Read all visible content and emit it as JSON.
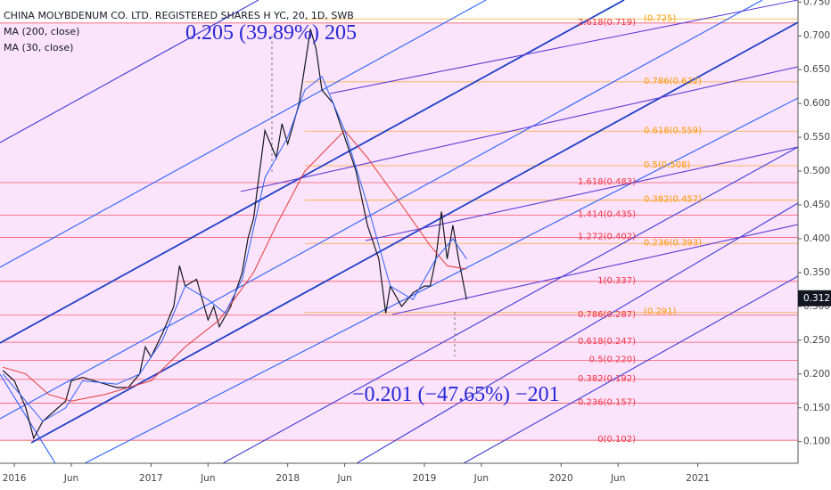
{
  "chart_data": {
    "type": "line",
    "annotations": [
      "0.205 (39.89%) 205",
      "−0.201 (−47.65%) −201"
    ],
    "last_price": 0.312,
    "xlim": [
      -1.26,
      68.8
    ],
    "ylim": [
      0.068,
      0.753
    ],
    "xticks": [
      {
        "value": 0,
        "label": "2016"
      },
      {
        "value": 5,
        "label": "Jun"
      },
      {
        "value": 12,
        "label": "2017"
      },
      {
        "value": 17,
        "label": "Jun"
      },
      {
        "value": 24,
        "label": "2018"
      },
      {
        "value": 29,
        "label": "Jun"
      },
      {
        "value": 36,
        "label": "2019"
      },
      {
        "value": 41,
        "label": "Jun"
      },
      {
        "value": 48,
        "label": "2020"
      },
      {
        "value": 53,
        "label": "Jun"
      },
      {
        "value": 60,
        "label": "2021"
      }
    ],
    "yticks": [
      {
        "value": 0.1,
        "label": "0.100"
      },
      {
        "value": 0.15,
        "label": "0.150"
      },
      {
        "value": 0.2,
        "label": "0.200"
      },
      {
        "value": 0.25,
        "label": "0.250"
      },
      {
        "value": 0.3,
        "label": "0.300"
      },
      {
        "value": 0.35,
        "label": "0.350"
      },
      {
        "value": 0.4,
        "label": "0.400"
      },
      {
        "value": 0.45,
        "label": "0.450"
      },
      {
        "value": 0.5,
        "label": "0.500"
      },
      {
        "value": 0.55,
        "label": "0.550"
      },
      {
        "value": 0.6,
        "label": "0.600"
      },
      {
        "value": 0.65,
        "label": "0.650"
      },
      {
        "value": 0.7,
        "label": "0.700"
      },
      {
        "value": 0.75,
        "label": "0.750"
      }
    ],
    "series": [
      {
        "name": "CHINA MOLYBDENUM CO. LTD. REGISTERED SHARES H YC, 20, 1D, SWB",
        "color": "#131722",
        "x": [
          -1,
          0,
          1,
          1.7,
          2.5,
          3.5,
          4.5,
          5,
          6,
          7,
          8,
          9,
          10,
          11,
          11.5,
          12,
          13,
          14,
          14.5,
          15,
          16,
          17,
          17.5,
          18,
          19,
          20,
          20.5,
          21,
          22,
          23,
          23.5,
          24,
          25,
          26,
          26.5,
          27,
          28,
          29,
          30,
          31,
          32,
          32.6,
          33,
          34,
          35,
          36,
          36.5,
          37,
          37.5,
          38,
          38.5,
          39,
          39.7
        ],
        "values": [
          0.205,
          0.19,
          0.15,
          0.105,
          0.13,
          0.145,
          0.16,
          0.19,
          0.195,
          0.19,
          0.185,
          0.18,
          0.18,
          0.2,
          0.24,
          0.225,
          0.26,
          0.3,
          0.36,
          0.33,
          0.34,
          0.28,
          0.3,
          0.27,
          0.3,
          0.35,
          0.4,
          0.43,
          0.56,
          0.52,
          0.57,
          0.54,
          0.6,
          0.71,
          0.68,
          0.62,
          0.6,
          0.55,
          0.5,
          0.42,
          0.37,
          0.29,
          0.33,
          0.3,
          0.32,
          0.33,
          0.33,
          0.37,
          0.44,
          0.37,
          0.42,
          0.37,
          0.31
        ]
      },
      {
        "name": "MA (200, close)",
        "color": "#e53935",
        "x": [
          -1,
          1,
          3,
          5,
          8,
          12,
          15,
          18,
          21,
          23,
          25.5,
          29,
          31,
          34,
          36.5,
          38,
          39.7
        ],
        "values": [
          0.21,
          0.2,
          0.17,
          0.16,
          0.17,
          0.19,
          0.24,
          0.28,
          0.35,
          0.42,
          0.5,
          0.56,
          0.52,
          0.45,
          0.39,
          0.36,
          0.355
        ]
      },
      {
        "name": "MA (30, close)",
        "color": "#2962ff",
        "x": [
          -1,
          1,
          2.5,
          4.5,
          6,
          9,
          11,
          13,
          15,
          17,
          18.5,
          20,
          22,
          24,
          25.5,
          27,
          29,
          31,
          33,
          35,
          37,
          38.5,
          39.7
        ],
        "values": [
          0.2,
          0.16,
          0.13,
          0.15,
          0.19,
          0.185,
          0.2,
          0.25,
          0.33,
          0.31,
          0.29,
          0.34,
          0.49,
          0.55,
          0.62,
          0.64,
          0.56,
          0.45,
          0.33,
          0.31,
          0.37,
          0.4,
          0.37
        ]
      }
    ],
    "fib_extension": {
      "color": "#f23645",
      "levels": [
        {
          "label": "2.618(0.719)",
          "value": 0.719
        },
        {
          "label": "1.618(0.483)",
          "value": 0.483
        },
        {
          "label": "1.414(0.435)",
          "value": 0.435
        },
        {
          "label": "1.272(0.402)",
          "value": 0.402
        },
        {
          "label": "1(0.337)",
          "value": 0.337
        },
        {
          "label": "0.786(0.287)",
          "value": 0.287
        },
        {
          "label": "0.618(0.247)",
          "value": 0.247
        },
        {
          "label": "0.5(0.220)",
          "value": 0.22
        },
        {
          "label": "0.382(0.192)",
          "value": 0.192
        },
        {
          "label": "0.236(0.157)",
          "value": 0.157
        },
        {
          "label": "0(0.102)",
          "value": 0.102
        }
      ]
    },
    "fib_retracement": {
      "color": "#ff9800",
      "from": 25.5,
      "levels": [
        {
          "label": "(0.725)",
          "value": 0.725
        },
        {
          "label": "0.786(0.632)",
          "value": 0.632
        },
        {
          "label": "0.618(0.559)",
          "value": 0.559
        },
        {
          "label": "0.5(0.508)",
          "value": 0.508
        },
        {
          "label": "0.382(0.457)",
          "value": 0.457
        },
        {
          "label": "0.236(0.393)",
          "value": 0.393
        },
        {
          "label": "(0.291)",
          "value": 0.291
        }
      ]
    }
  }
}
